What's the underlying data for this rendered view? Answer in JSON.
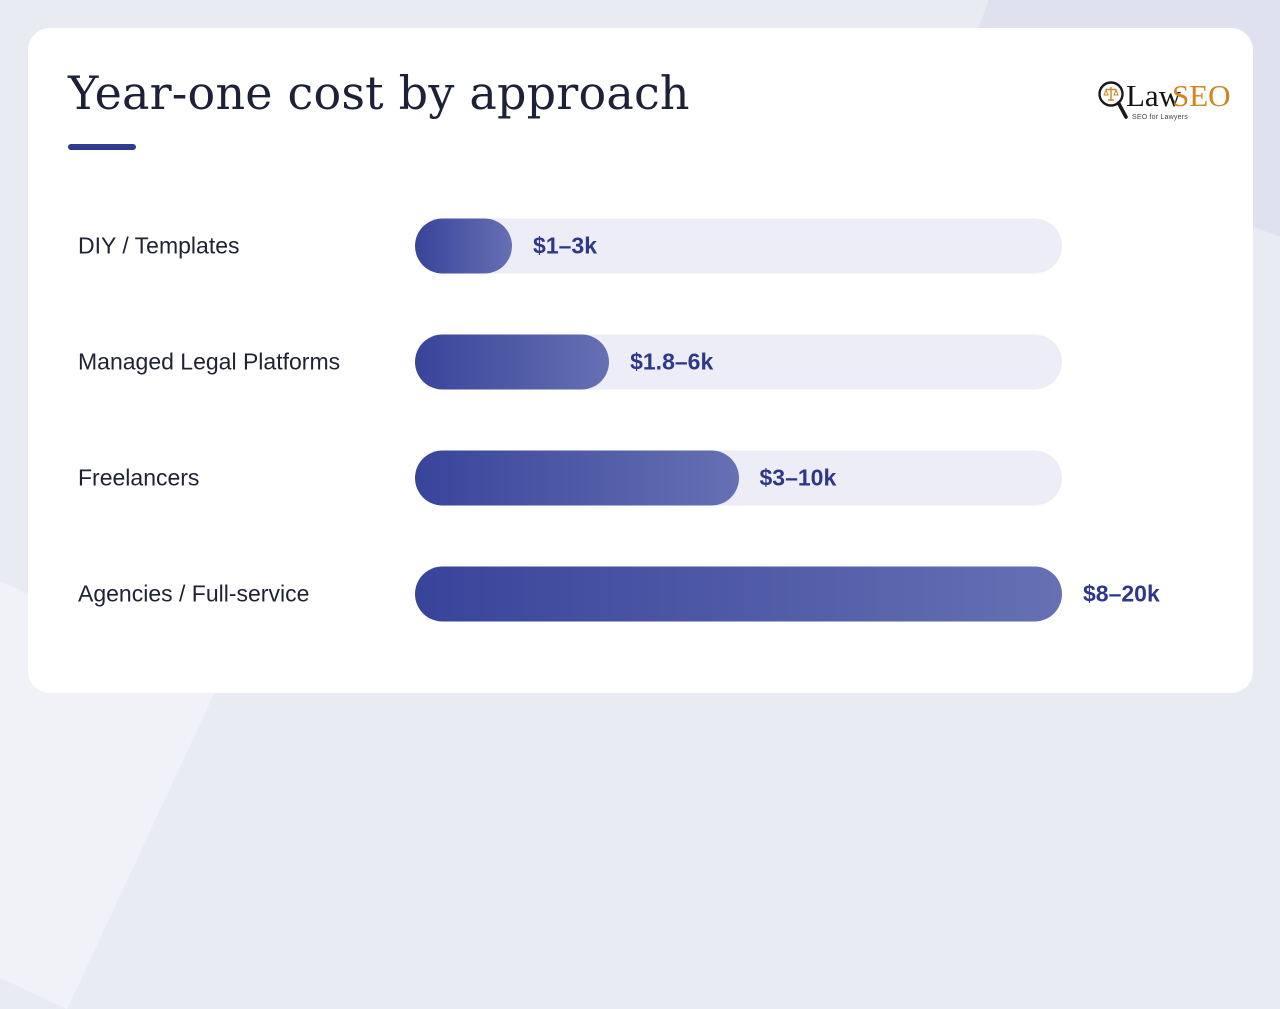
{
  "chart_data": {
    "type": "bar",
    "orientation": "horizontal",
    "title": "Year-one cost by approach",
    "xlabel": "",
    "ylabel": "",
    "grid": false,
    "categories": [
      "DIY / Templates",
      "Managed Legal Platforms",
      "Freelancers",
      "Agencies / Full-service"
    ],
    "value_labels": [
      "$1–3k",
      "$1.8–6k",
      "$3–10k",
      "$8–20k"
    ],
    "values": [
      3,
      6,
      10,
      20
    ],
    "xlim": [
      0,
      20
    ],
    "colors": {
      "bar_start": "#38449a",
      "bar_end": "#6670b3",
      "track": "#ecedf6",
      "value_text": "#2f3888"
    }
  },
  "logo": {
    "text_primary": "Law",
    "text_accent": "SEO",
    "tagline": "SEO for Lawyers",
    "accent_color": "#d3831f",
    "icon": "magnifier-scales-icon"
  },
  "accent_color": "#2f3b8f"
}
